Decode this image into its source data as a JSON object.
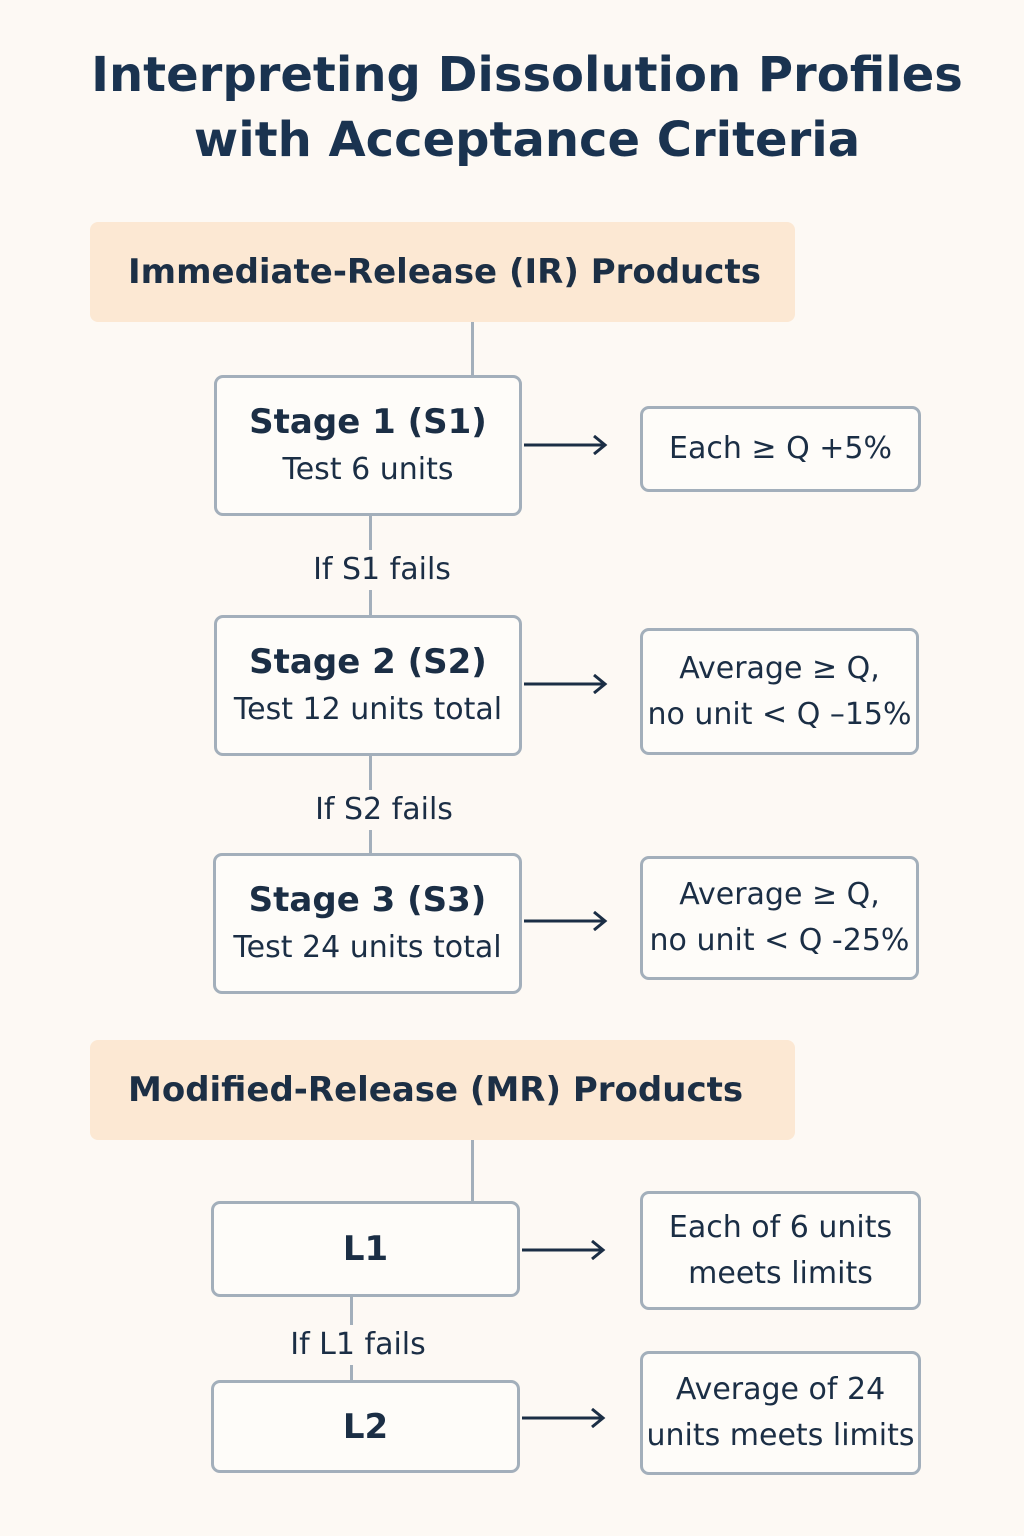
{
  "title": {
    "line1": "Interpreting Dissolution Profiles",
    "line2": "with Acceptance Criteria"
  },
  "ir": {
    "header": "Immediate-Release (IR) Products",
    "stages": [
      {
        "title": "Stage 1 (S1)",
        "subtitle": "Test 6 units",
        "criteria": [
          "Each ≥ Q +5%"
        ]
      },
      {
        "title": "Stage 2 (S2)",
        "subtitle": "Test 12 units total",
        "criteria": [
          "Average ≥ Q,",
          "no unit < Q –15%"
        ]
      },
      {
        "title": "Stage 3 (S3)",
        "subtitle": "Test 24 units total",
        "criteria": [
          "Average ≥ Q,",
          "no unit < Q -25%"
        ]
      }
    ],
    "transitions": [
      "If S1 fails",
      "If S2 fails"
    ]
  },
  "mr": {
    "header": "Modified-Release (MR) Products",
    "levels": [
      {
        "title": "L1",
        "criteria": [
          "Each of 6 units",
          "meets limits"
        ]
      },
      {
        "title": "L2",
        "criteria": [
          "Average of 24",
          "units meets limits"
        ]
      }
    ],
    "transitions": [
      "If L1 fails"
    ]
  },
  "colors": {
    "background": "#fdf9f4",
    "header_fill": "#fce8d3",
    "border": "#a3afbb",
    "text": "#1a3350"
  }
}
